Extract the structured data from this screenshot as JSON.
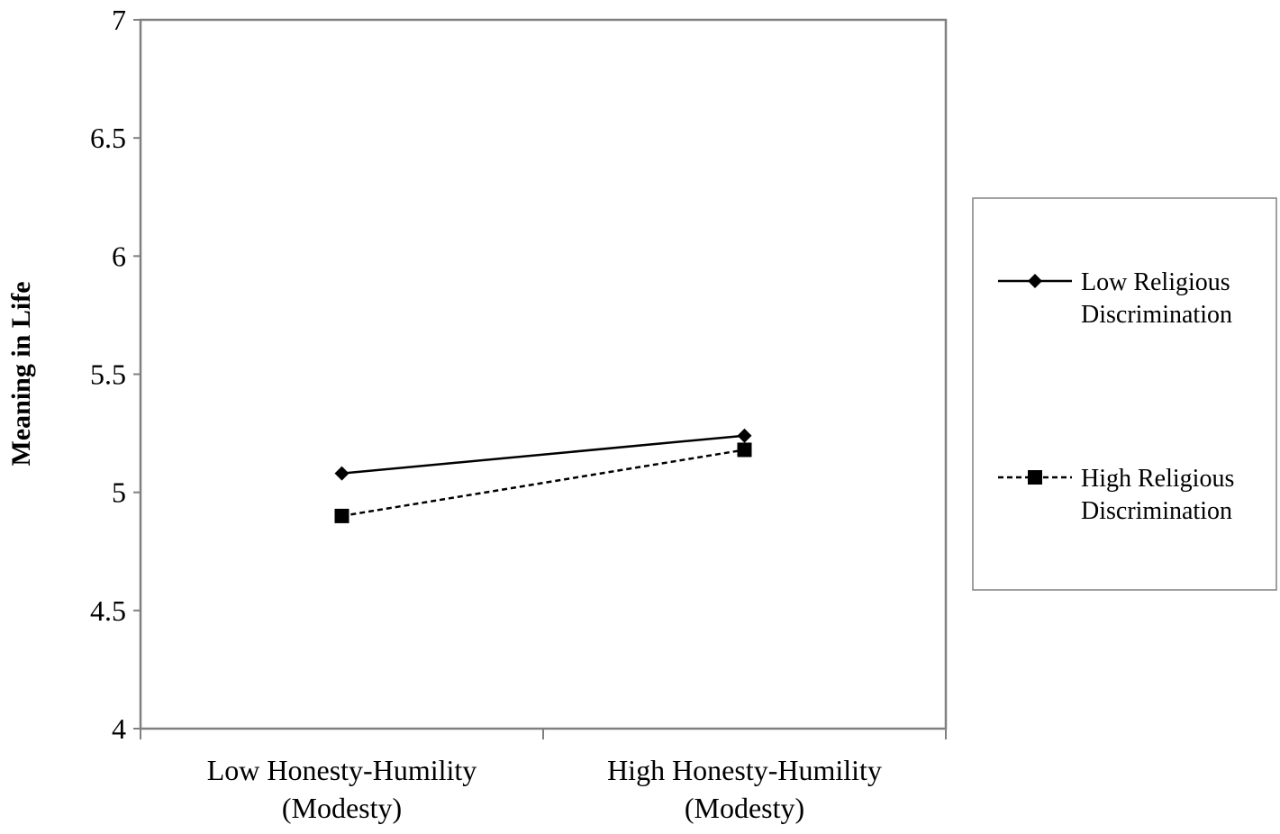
{
  "chart_data": {
    "type": "line",
    "title": "",
    "xlabel": "",
    "ylabel": "Meaning in Life",
    "categories": [
      [
        "Low Honesty-Humility",
        "(Modesty)"
      ],
      [
        "High Honesty-Humility",
        "(Modesty)"
      ]
    ],
    "ylim": [
      4,
      7
    ],
    "yticks": [
      "4",
      "4.5",
      "5",
      "5.5",
      "6",
      "6.5",
      "7"
    ],
    "grid": false,
    "legend_position": "right",
    "series": [
      {
        "name": [
          "Low Religious",
          "Discrimination"
        ],
        "values": [
          5.08,
          5.24
        ],
        "marker": "diamond",
        "line_style": "solid",
        "color": "#000000"
      },
      {
        "name": [
          "High Religious",
          "Discrimination"
        ],
        "values": [
          4.9,
          5.18
        ],
        "marker": "square",
        "line_style": "dashed",
        "color": "#000000"
      }
    ]
  }
}
